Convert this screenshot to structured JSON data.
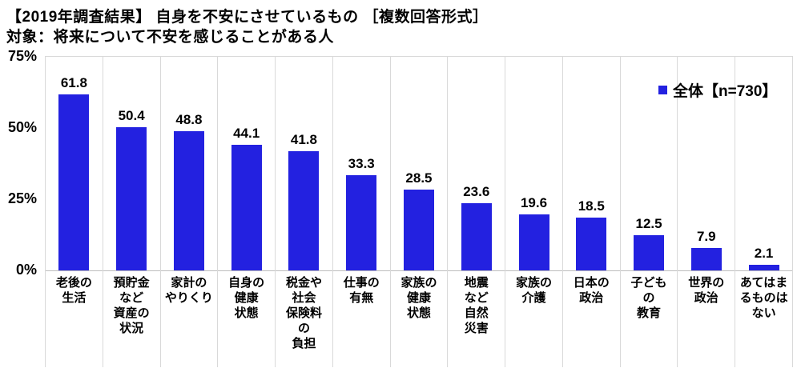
{
  "chart_data": {
    "type": "bar",
    "title": "【2019年調査結果】 自身を不安にさせているもの ［複数回答形式］",
    "subtitle": "対象：将来について不安を感じることがある人",
    "legend": "全体【n=730】",
    "ylim": [
      0,
      75
    ],
    "ytick_labels": [
      "0%",
      "25%",
      "50%",
      "75%"
    ],
    "yticks": [
      0,
      25,
      50,
      75
    ],
    "grid": "vertical category separators only",
    "legend_position": "top-right inside plot",
    "bar_color": "#2321E0",
    "categories": [
      "老後の生活",
      "預貯金など資産の状況",
      "家計のやりくり",
      "自身の健康状態",
      "税金や社会保険料の負担",
      "仕事の有無",
      "家族の健康状態",
      "地震など自然災害",
      "家族の介護",
      "日本の政治",
      "子どもの教育",
      "世界の政治",
      "あてはまるものはない"
    ],
    "category_lines": [
      [
        "老後の",
        "生活"
      ],
      [
        "預貯金",
        "など",
        "資産の",
        "状況"
      ],
      [
        "家計の",
        "やりくり"
      ],
      [
        "自身の",
        "健康",
        "状態"
      ],
      [
        "税金や",
        "社会",
        "保険料",
        "の",
        "負担"
      ],
      [
        "仕事の",
        "有無"
      ],
      [
        "家族の",
        "健康",
        "状態"
      ],
      [
        "地震",
        "など",
        "自然",
        "災害"
      ],
      [
        "家族の",
        "介護"
      ],
      [
        "日本の",
        "政治"
      ],
      [
        "子ども",
        "の",
        "教育"
      ],
      [
        "世界の",
        "政治"
      ],
      [
        "あてはま",
        "るものは",
        "ない"
      ]
    ],
    "values": [
      61.8,
      50.4,
      48.8,
      44.1,
      41.8,
      33.3,
      28.5,
      23.6,
      19.6,
      18.5,
      12.5,
      7.9,
      2.1
    ]
  },
  "colors": {
    "bar": "#2321E0",
    "separator": "#D9D9D9",
    "axis_line": "#BDBDBD",
    "text": "#000000"
  }
}
